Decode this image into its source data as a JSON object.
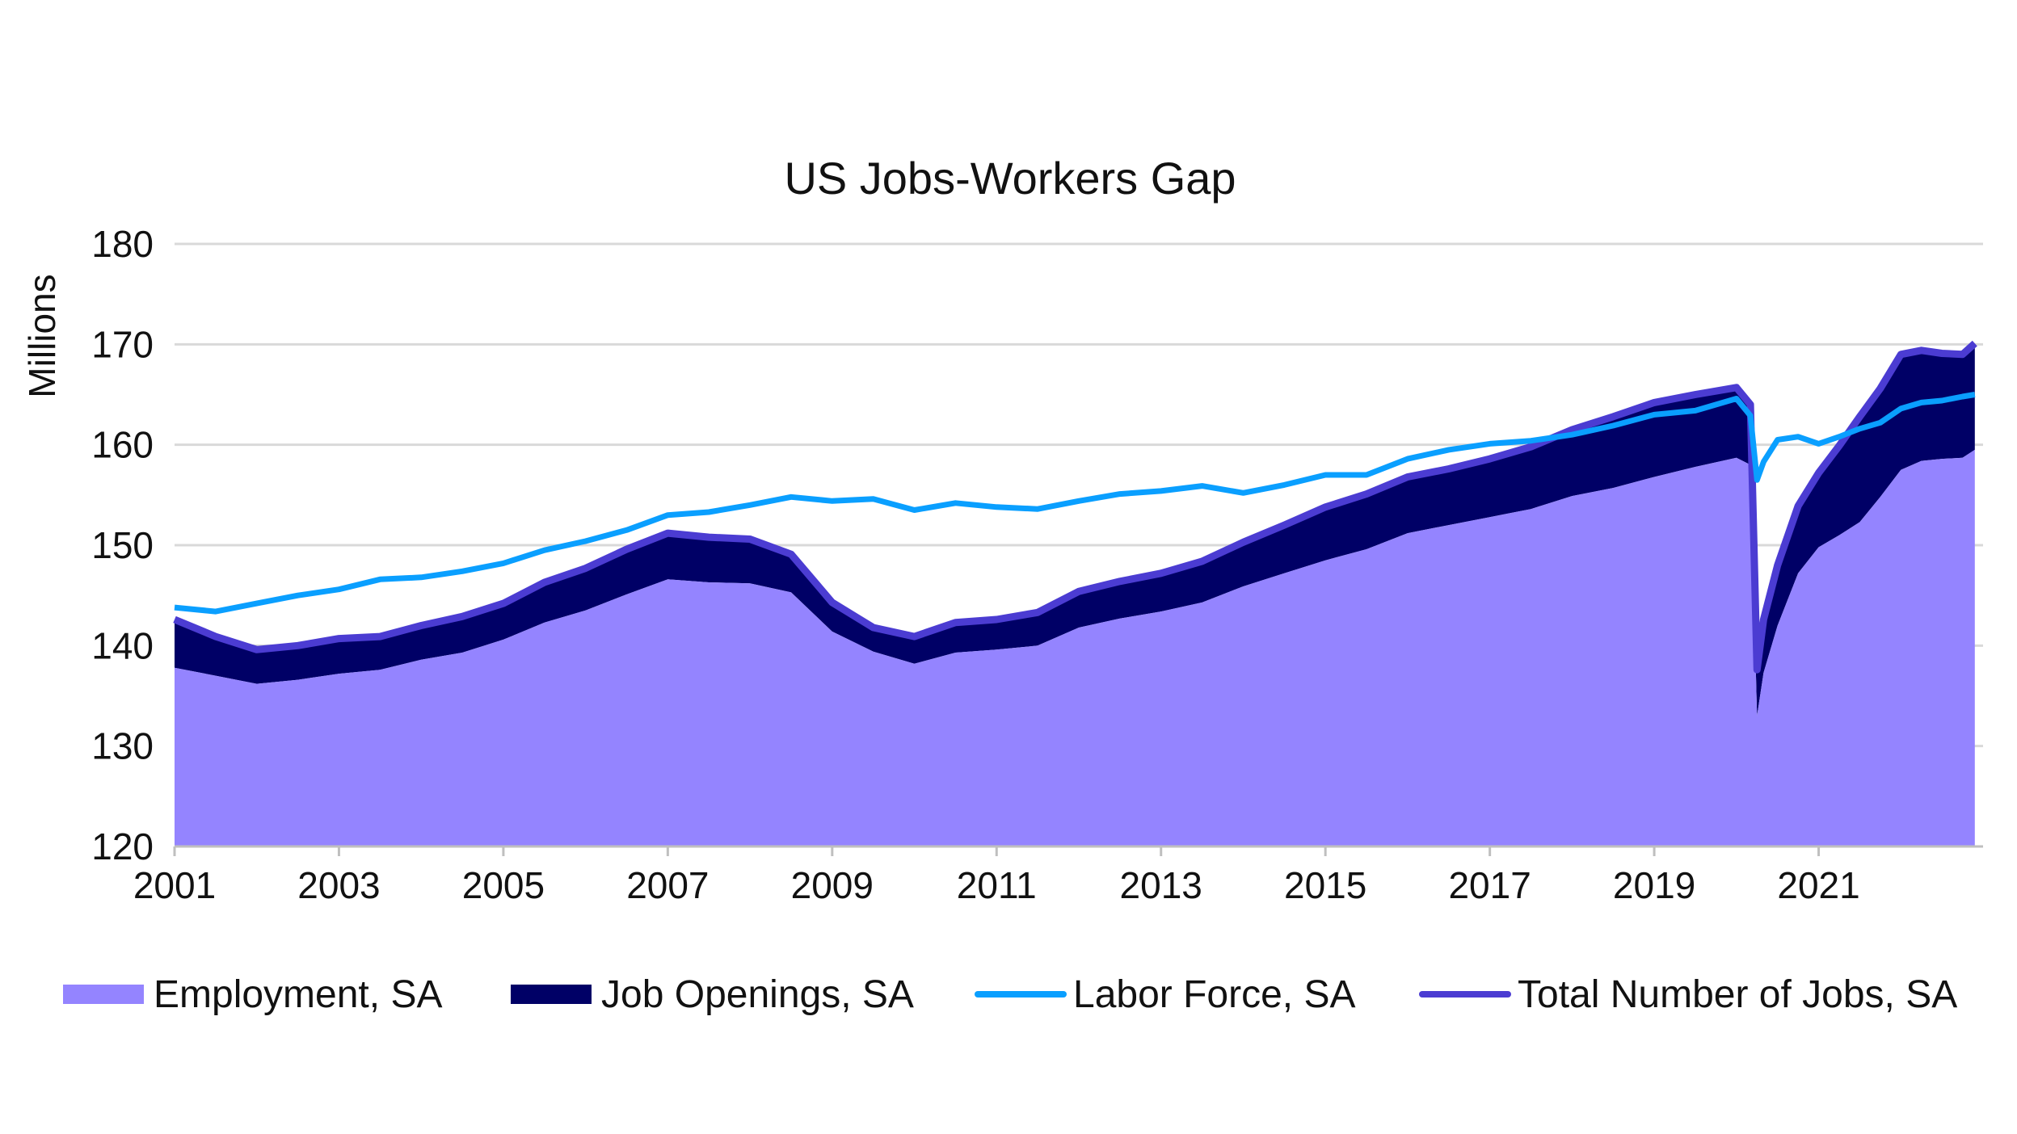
{
  "chart_data": {
    "type": "area",
    "title": "US Jobs-Workers Gap",
    "xlabel": "",
    "ylabel": "Millions",
    "ylim": [
      120,
      180
    ],
    "xlim": [
      2001,
      2023
    ],
    "yticks": [
      "120",
      "130",
      "140",
      "150",
      "160",
      "170",
      "180"
    ],
    "xticks": [
      "2001",
      "2003",
      "2005",
      "2007",
      "2009",
      "2011",
      "2013",
      "2015",
      "2017",
      "2019",
      "2021"
    ],
    "grid": true,
    "legend_position": "bottom",
    "x": [
      2001.0,
      2001.5,
      2002.0,
      2002.5,
      2003.0,
      2003.5,
      2004.0,
      2004.5,
      2005.0,
      2005.5,
      2006.0,
      2006.5,
      2007.0,
      2007.5,
      2008.0,
      2008.5,
      2009.0,
      2009.5,
      2010.0,
      2010.5,
      2011.0,
      2011.5,
      2012.0,
      2012.5,
      2013.0,
      2013.5,
      2014.0,
      2014.5,
      2015.0,
      2015.5,
      2016.0,
      2016.5,
      2017.0,
      2017.5,
      2018.0,
      2018.5,
      2019.0,
      2019.5,
      2020.0,
      2020.17,
      2020.25,
      2020.33,
      2020.5,
      2020.75,
      2021.0,
      2021.25,
      2021.5,
      2021.75,
      2022.0,
      2022.25,
      2022.5,
      2022.75,
      2022.9
    ],
    "series": [
      {
        "name": "Employment, SA",
        "role": "area",
        "color": "#9484FF",
        "values": [
          137.8,
          137.0,
          136.2,
          136.6,
          137.2,
          137.6,
          138.6,
          139.3,
          140.6,
          142.3,
          143.5,
          145.1,
          146.6,
          146.3,
          146.2,
          145.3,
          141.4,
          139.4,
          138.2,
          139.3,
          139.6,
          140.0,
          141.8,
          142.7,
          143.4,
          144.3,
          145.9,
          147.2,
          148.5,
          149.6,
          151.2,
          152.0,
          152.8,
          153.6,
          154.9,
          155.7,
          156.8,
          157.8,
          158.7,
          158.0,
          133.0,
          137.3,
          142.0,
          147.2,
          149.8,
          151.0,
          152.3,
          154.8,
          157.5,
          158.4,
          158.6,
          158.7,
          159.5
        ]
      },
      {
        "name": "Job Openings, SA",
        "role": "stacked-area",
        "color": "#000066",
        "values": [
          4.8,
          3.9,
          3.4,
          3.4,
          3.5,
          3.3,
          3.4,
          3.6,
          3.6,
          4.0,
          4.2,
          4.5,
          4.6,
          4.5,
          4.4,
          3.8,
          2.9,
          2.4,
          2.7,
          3.0,
          3.0,
          3.3,
          3.6,
          3.7,
          3.8,
          4.1,
          4.4,
          4.8,
          5.3,
          5.5,
          5.6,
          5.6,
          5.8,
          6.2,
          6.6,
          7.1,
          7.4,
          7.2,
          7.0,
          6.0,
          4.6,
          5.3,
          6.0,
          6.7,
          7.4,
          8.9,
          10.5,
          10.8,
          11.5,
          11.0,
          10.5,
          10.3,
          10.6
        ]
      },
      {
        "name": "Labor Force, SA",
        "role": "line",
        "color": "#0A9FFF",
        "values": [
          143.8,
          143.4,
          144.2,
          145.0,
          145.6,
          146.6,
          146.8,
          147.4,
          148.2,
          149.5,
          150.4,
          151.5,
          153.0,
          153.3,
          154.0,
          154.8,
          154.4,
          154.6,
          153.5,
          154.2,
          153.8,
          153.6,
          154.4,
          155.1,
          155.4,
          155.9,
          155.2,
          156.0,
          157.0,
          157.0,
          158.6,
          159.5,
          160.1,
          160.4,
          161.0,
          161.9,
          163.0,
          163.4,
          164.6,
          162.9,
          156.5,
          158.3,
          160.5,
          160.8,
          160.1,
          160.8,
          161.6,
          162.2,
          163.6,
          164.2,
          164.4,
          164.8,
          165.0
        ]
      },
      {
        "name": "Total Number of Jobs, SA",
        "role": "line",
        "color": "#4B3CD2",
        "values": [
          142.6,
          140.9,
          139.6,
          140.0,
          140.7,
          140.9,
          142.0,
          142.9,
          144.2,
          146.3,
          147.7,
          149.6,
          151.2,
          150.8,
          150.6,
          149.1,
          144.3,
          141.8,
          140.9,
          142.3,
          142.6,
          143.3,
          145.4,
          146.4,
          147.2,
          148.4,
          150.3,
          152.0,
          153.8,
          155.1,
          156.8,
          157.6,
          158.6,
          159.8,
          161.5,
          162.8,
          164.2,
          165.0,
          165.7,
          164.0,
          137.6,
          142.6,
          148.0,
          153.9,
          157.2,
          159.9,
          162.8,
          165.6,
          169.0,
          169.4,
          169.1,
          169.0,
          170.1
        ]
      }
    ]
  },
  "legend": {
    "items": [
      {
        "label": "Employment, SA",
        "icon": "area-swatch",
        "color": "#9484FF"
      },
      {
        "label": "Job Openings, SA",
        "icon": "area-swatch",
        "color": "#000066"
      },
      {
        "label": "Labor Force, SA",
        "icon": "line-swatch",
        "color": "#0A9FFF"
      },
      {
        "label": "Total Number of Jobs, SA",
        "icon": "line-swatch",
        "color": "#4B3CD2"
      }
    ]
  }
}
